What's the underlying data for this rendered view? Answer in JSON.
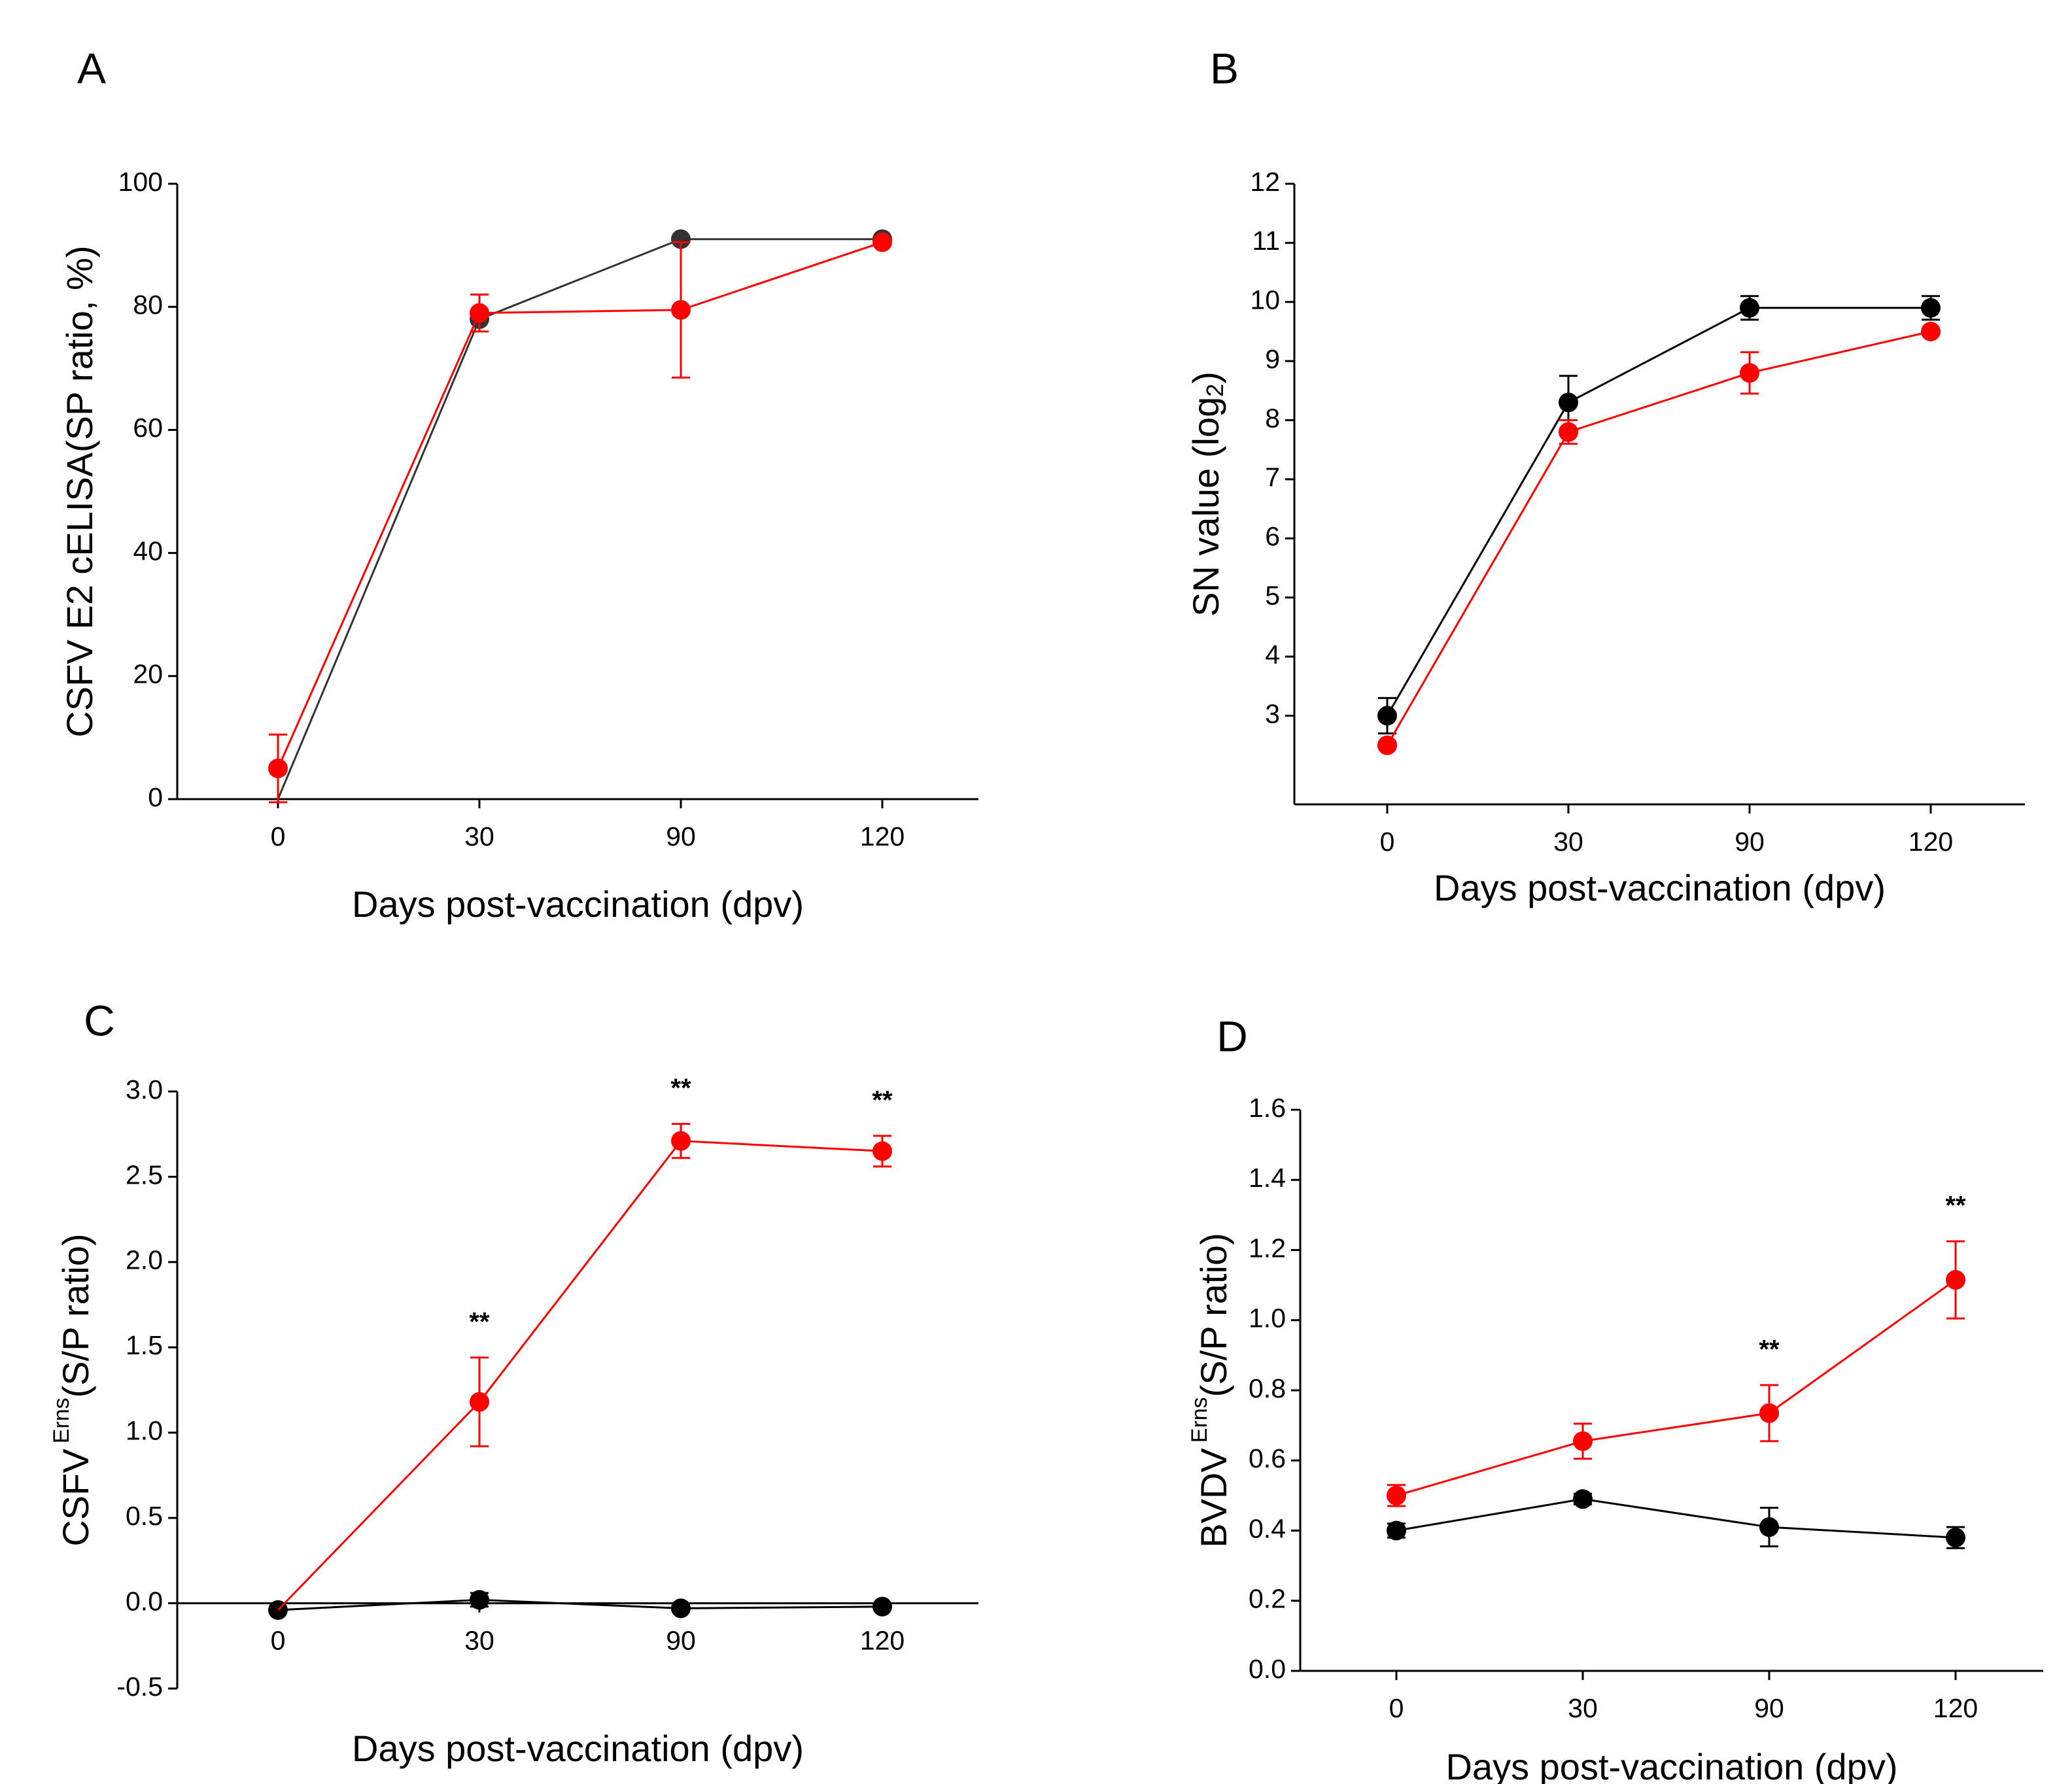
{
  "colors": {
    "black_series": "#000000",
    "red_series": "#ff0000",
    "black_line": "#000000"
  },
  "chart_data": [
    {
      "panel": "A",
      "type": "line",
      "xlabel": "Days post-vaccination (dpv)",
      "ylabel": "CSFV E2 cELISA(SP ratio, %)",
      "categories": [
        "0",
        "30",
        "90",
        "120"
      ],
      "ylim": [
        0,
        100
      ],
      "yticks": [
        "0",
        "20",
        "40",
        "60",
        "80",
        "100"
      ],
      "ytick_values": [
        0,
        20,
        40,
        60,
        80,
        100
      ],
      "series": [
        {
          "name": "black",
          "color": "#333333",
          "values": [
            0,
            78,
            91,
            91
          ],
          "err": [
            0,
            0,
            0,
            0
          ],
          "marker_from": 1
        },
        {
          "name": "red",
          "color": "#ff0000",
          "values": [
            5,
            79,
            79.5,
            90.5
          ],
          "err": [
            5.5,
            3,
            11,
            0
          ],
          "marker_from": 0
        }
      ],
      "annotations": []
    },
    {
      "panel": "B",
      "type": "line",
      "xlabel": "Days post-vaccination (dpv)",
      "ylabel": "SN value (log",
      "ylabel_sub": "2",
      "ylabel_end": ")",
      "categories": [
        "0",
        "30",
        "90",
        "120"
      ],
      "ylim": [
        1.5,
        12
      ],
      "yticks": [
        "3",
        "4",
        "5",
        "6",
        "7",
        "8",
        "9",
        "10",
        "11",
        "12"
      ],
      "ytick_values": [
        3,
        4,
        5,
        6,
        7,
        8,
        9,
        10,
        11,
        12
      ],
      "series": [
        {
          "name": "black",
          "color": "#000000",
          "values": [
            3,
            8.3,
            9.9,
            9.9
          ],
          "err": [
            0.3,
            0.45,
            0.2,
            0.2
          ],
          "marker_from": 0
        },
        {
          "name": "red",
          "color": "#ff0000",
          "values": [
            2.5,
            7.8,
            8.8,
            9.5
          ],
          "err": [
            0,
            0.2,
            0.35,
            0
          ],
          "marker_from": 0
        }
      ],
      "annotations": []
    },
    {
      "panel": "C",
      "type": "line",
      "xlabel": "Days post-vaccination (dpv)",
      "ylabel": "CSFV",
      "ylabel_sup": "Erns",
      "ylabel_end": "(S/P ratio)",
      "categories": [
        "0",
        "30",
        "90",
        "120"
      ],
      "ylim": [
        -0.5,
        3.0
      ],
      "yticks": [
        "-0.5",
        "0.0",
        "0.5",
        "1.0",
        "1.5",
        "2.0",
        "2.5",
        "3.0"
      ],
      "ytick_values": [
        -0.5,
        0,
        0.5,
        1.0,
        1.5,
        2.0,
        2.5,
        3.0
      ],
      "series": [
        {
          "name": "black",
          "color": "#000000",
          "values": [
            -0.04,
            0.02,
            -0.03,
            -0.02
          ],
          "err": [
            0,
            0.04,
            0,
            0
          ],
          "marker_from": 0
        },
        {
          "name": "red",
          "color": "#ff0000",
          "values": [
            -0.04,
            1.18,
            2.71,
            2.65
          ],
          "err": [
            0,
            0.26,
            0.1,
            0.09
          ],
          "marker_from": 1
        }
      ],
      "annotations": [
        {
          "category": "30",
          "text": "**"
        },
        {
          "category": "90",
          "text": "**"
        },
        {
          "category": "120",
          "text": "**"
        }
      ]
    },
    {
      "panel": "D",
      "type": "line",
      "xlabel": "Days post-vaccination (dpv)",
      "ylabel": "BVDV",
      "ylabel_sup": "Erns",
      "ylabel_end": "(S/P ratio)",
      "categories": [
        "0",
        "30",
        "90",
        "120"
      ],
      "ylim": [
        0,
        1.6
      ],
      "yticks": [
        "0.0",
        "0.2",
        "0.4",
        "0.6",
        "0.8",
        "1.0",
        "1.2",
        "1.4",
        "1.6"
      ],
      "ytick_values": [
        0,
        0.2,
        0.4,
        0.6,
        0.8,
        1.0,
        1.2,
        1.4,
        1.6
      ],
      "series": [
        {
          "name": "black",
          "color": "#000000",
          "values": [
            0.4,
            0.49,
            0.41,
            0.38
          ],
          "err": [
            0.02,
            0.015,
            0.055,
            0.03
          ],
          "marker_from": 0
        },
        {
          "name": "red",
          "color": "#ff0000",
          "values": [
            0.5,
            0.655,
            0.735,
            1.115
          ],
          "err": [
            0.03,
            0.05,
            0.08,
            0.11
          ],
          "marker_from": 0
        }
      ],
      "annotations": [
        {
          "category": "90",
          "text": "**"
        },
        {
          "category": "120",
          "text": "**"
        }
      ]
    }
  ]
}
